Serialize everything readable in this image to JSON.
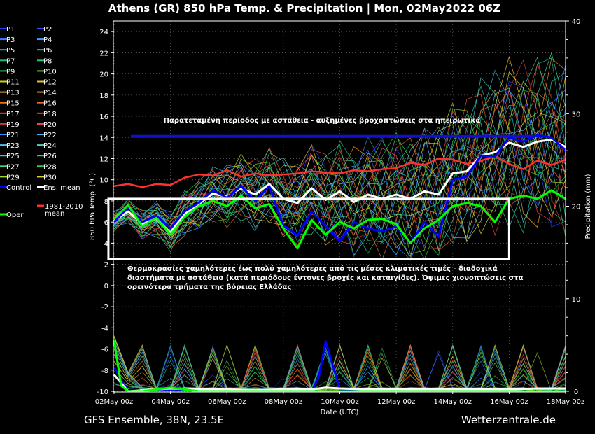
{
  "chart_data": {
    "type": "line",
    "title": "Athens  (GR)  850 hPa Temp. & Precipitation | Mon, 02May2022 06Z",
    "xlabel": "Date (UTC)",
    "ylabel": "850 hPa Temp. (°C)",
    "ylabel_right": "Precipitation (mm)",
    "footer_left": "GFS Ensemble, 38N, 23.5E",
    "footer_right": "Wetterzentrale.de",
    "x_ticks": [
      "02May 00z",
      "04May 00z",
      "06May 00z",
      "08May 00z",
      "10May 00z",
      "12May 00z",
      "14May 00z",
      "16May 00z",
      "18May 00z"
    ],
    "x_range_days": [
      0,
      16
    ],
    "ylim": [
      -10,
      25
    ],
    "y_ticks": [
      -10,
      -8,
      -6,
      -4,
      -2,
      0,
      2,
      4,
      6,
      8,
      10,
      12,
      14,
      16,
      18,
      20,
      22,
      24
    ],
    "y2lim": [
      0,
      40
    ],
    "y2_ticks": [
      0,
      10,
      20,
      30,
      40
    ],
    "grid": "dotted",
    "legend_placement": "left-outside",
    "legend": [
      {
        "name": "P1",
        "color": "#1e3cff"
      },
      {
        "name": "P2",
        "color": "#3c50ff"
      },
      {
        "name": "P3",
        "color": "#3a7dff"
      },
      {
        "name": "P4",
        "color": "#3aa0ff"
      },
      {
        "name": "P5",
        "color": "#2ab6c8"
      },
      {
        "name": "P6",
        "color": "#20c8a0"
      },
      {
        "name": "P7",
        "color": "#20b878"
      },
      {
        "name": "P8",
        "color": "#20c860"
      },
      {
        "name": "P9",
        "color": "#28d040"
      },
      {
        "name": "P10",
        "color": "#6ad020"
      },
      {
        "name": "P11",
        "color": "#c8d020"
      },
      {
        "name": "P12",
        "color": "#e8c028"
      },
      {
        "name": "P13",
        "color": "#e8a828"
      },
      {
        "name": "P14",
        "color": "#e89028"
      },
      {
        "name": "P15",
        "color": "#e87828"
      },
      {
        "name": "P16",
        "color": "#e86428"
      },
      {
        "name": "P17",
        "color": "#e85028"
      },
      {
        "name": "P18",
        "color": "#e84040"
      },
      {
        "name": "P19",
        "color": "#c83c3c"
      },
      {
        "name": "P20",
        "color": "#ff4060"
      },
      {
        "name": "P21",
        "color": "#3c8cff"
      },
      {
        "name": "P22",
        "color": "#3cb4ff"
      },
      {
        "name": "P23",
        "color": "#50c0e0"
      },
      {
        "name": "P24",
        "color": "#50d0c0"
      },
      {
        "name": "P25",
        "color": "#40d0a0"
      },
      {
        "name": "P26",
        "color": "#30c890"
      },
      {
        "name": "P27",
        "color": "#50d070"
      },
      {
        "name": "P28",
        "color": "#30d050"
      },
      {
        "name": "P29",
        "color": "#a0d830"
      },
      {
        "name": "P30",
        "color": "#e0d030"
      },
      {
        "name": "Control",
        "color": "#0000ff"
      },
      {
        "name": "Ens. mean",
        "color": "#ffffff"
      },
      {
        "name": "1981-2010 mean",
        "color": "#ff3030"
      },
      {
        "name": "Oper",
        "color": "#00ff00"
      }
    ],
    "annotations": [
      "Παρατεταμένη περίοδος με αστάθεια - αυξημένες βροχοπτώσεις στα ηπειρωτικά",
      "Θερμοκρασίες χαμηλότερες έως πολύ χαμηλότερες από τις μέσες κλιματικές τιμές - διαδοχικά διαστήματα με αστάθεια (κατά περιόδους έντονες βροχές και καταιγίδες). Όψιμες χιονοπτώσεις στα ορεινότερα τμήματα της βόρειας Ελλάδας"
    ],
    "annotation_band_y": 14.1,
    "annotation_box_y": [
      2.5,
      8.2
    ],
    "annotation_box_x_days": [
      -0.2,
      14
    ],
    "series": [
      {
        "name": "1981-2010 mean",
        "x": [
          0,
          0.5,
          1,
          1.5,
          2,
          2.5,
          3,
          3.5,
          4,
          4.5,
          5,
          5.5,
          6,
          6.5,
          7,
          7.5,
          8,
          8.5,
          9,
          9.5,
          10,
          10.5,
          11,
          11.5,
          12,
          12.5,
          13,
          13.5,
          14,
          14.5,
          15,
          15.5,
          16
        ],
        "values": [
          9.4,
          9.6,
          9.3,
          9.6,
          9.5,
          10.2,
          10.5,
          10.4,
          10.9,
          10.3,
          10.6,
          10.4,
          10.5,
          10.6,
          10.8,
          10.7,
          10.6,
          10.9,
          10.8,
          11.0,
          11.1,
          11.6,
          11.4,
          12.0,
          11.9,
          11.5,
          11.8,
          12.2,
          11.5,
          11.0,
          11.8,
          11.4,
          11.9
        ]
      },
      {
        "name": "Ens. mean",
        "x": [
          0,
          0.5,
          1,
          1.5,
          2,
          2.5,
          3,
          3.5,
          4,
          4.5,
          5,
          5.5,
          6,
          6.5,
          7,
          7.5,
          8,
          8.5,
          9,
          9.5,
          10,
          10.5,
          11,
          11.5,
          12,
          12.5,
          13,
          13.5,
          14,
          14.5,
          15,
          15.5,
          16
        ],
        "values": [
          6.1,
          7.0,
          5.8,
          6.3,
          5.0,
          6.8,
          7.7,
          8.7,
          8.4,
          9.2,
          8.6,
          9.6,
          8.2,
          7.8,
          9.2,
          8.1,
          8.9,
          7.9,
          8.6,
          8.2,
          8.6,
          8.2,
          8.9,
          8.6,
          10.6,
          10.8,
          12.3,
          12.6,
          13.5,
          13.1,
          13.6,
          13.8,
          13.1
        ]
      },
      {
        "name": "Control",
        "x": [
          0,
          0.5,
          1,
          1.5,
          2,
          2.5,
          3,
          3.5,
          4,
          4.5,
          5,
          5.5,
          6,
          6.5,
          7,
          7.5,
          8,
          8.5,
          9,
          9.5,
          10,
          10.5,
          11,
          11.5,
          12,
          12.5,
          13,
          13.5,
          14,
          14.5,
          15,
          15.5,
          16
        ],
        "values": [
          6.0,
          7.4,
          6.0,
          6.6,
          5.4,
          7.0,
          7.8,
          9.0,
          8.3,
          9.4,
          8.0,
          9.4,
          5.7,
          4.7,
          7.0,
          5.6,
          4.2,
          6.0,
          5.4,
          5.1,
          5.6,
          4.0,
          6.0,
          4.6,
          10.0,
          10.3,
          12.3,
          12.2,
          14.0,
          13.6,
          14.2,
          14.0,
          12.8
        ]
      },
      {
        "name": "Oper",
        "x": [
          0,
          0.5,
          1,
          1.5,
          2,
          2.5,
          3,
          3.5,
          4,
          4.5,
          5,
          5.5,
          6,
          6.5,
          7,
          7.5,
          8,
          8.5,
          9,
          9.5,
          10,
          10.5,
          11,
          11.5,
          12,
          12.5,
          13,
          13.5,
          14,
          14.5,
          15,
          15.5,
          16
        ],
        "values": [
          6.3,
          7.6,
          5.6,
          6.4,
          4.8,
          6.5,
          7.5,
          8.0,
          7.5,
          8.5,
          7.3,
          7.7,
          5.4,
          3.5,
          6.2,
          4.8,
          6.0,
          5.4,
          6.2,
          6.3,
          5.8,
          4.0,
          5.4,
          6.2,
          7.5,
          7.8,
          7.5,
          6.0,
          8.2,
          8.5,
          8.2,
          9.0,
          8.2
        ]
      }
    ],
    "precip_series": [
      {
        "name": "Control",
        "x": [
          0,
          0.25,
          0.5,
          1,
          2,
          3,
          4,
          5,
          6,
          7,
          7.25,
          7.5,
          8,
          9,
          10,
          11,
          12,
          13,
          14,
          15,
          16
        ],
        "values": [
          2.6,
          1.2,
          0,
          0,
          0.2,
          0.2,
          0,
          0,
          0,
          0,
          1.5,
          5.4,
          0.2,
          0,
          0,
          0,
          0,
          0,
          0,
          0,
          0
        ]
      },
      {
        "name": "Ens. mean",
        "x": [
          0,
          0.25,
          0.5,
          1,
          2,
          3,
          4,
          5,
          6,
          7,
          7.5,
          8,
          9,
          10,
          11,
          12,
          13,
          14,
          15,
          16
        ],
        "values": [
          1.8,
          0.9,
          0,
          0.1,
          0.3,
          0.2,
          0.2,
          0.1,
          0.2,
          0.2,
          0.4,
          0.3,
          0.2,
          0.2,
          0.2,
          0.2,
          0.2,
          0.2,
          0.3,
          0.3
        ]
      },
      {
        "name": "Oper",
        "x": [
          0,
          0.25,
          0.5,
          1,
          2,
          3,
          4,
          5,
          6,
          7,
          8,
          9,
          10,
          11,
          12,
          13,
          14,
          15,
          16
        ],
        "values": [
          5.5,
          0.6,
          0,
          0,
          0.4,
          0,
          0,
          0,
          0,
          0,
          0,
          0,
          0,
          0,
          0,
          0,
          0,
          0,
          0
        ]
      }
    ]
  }
}
